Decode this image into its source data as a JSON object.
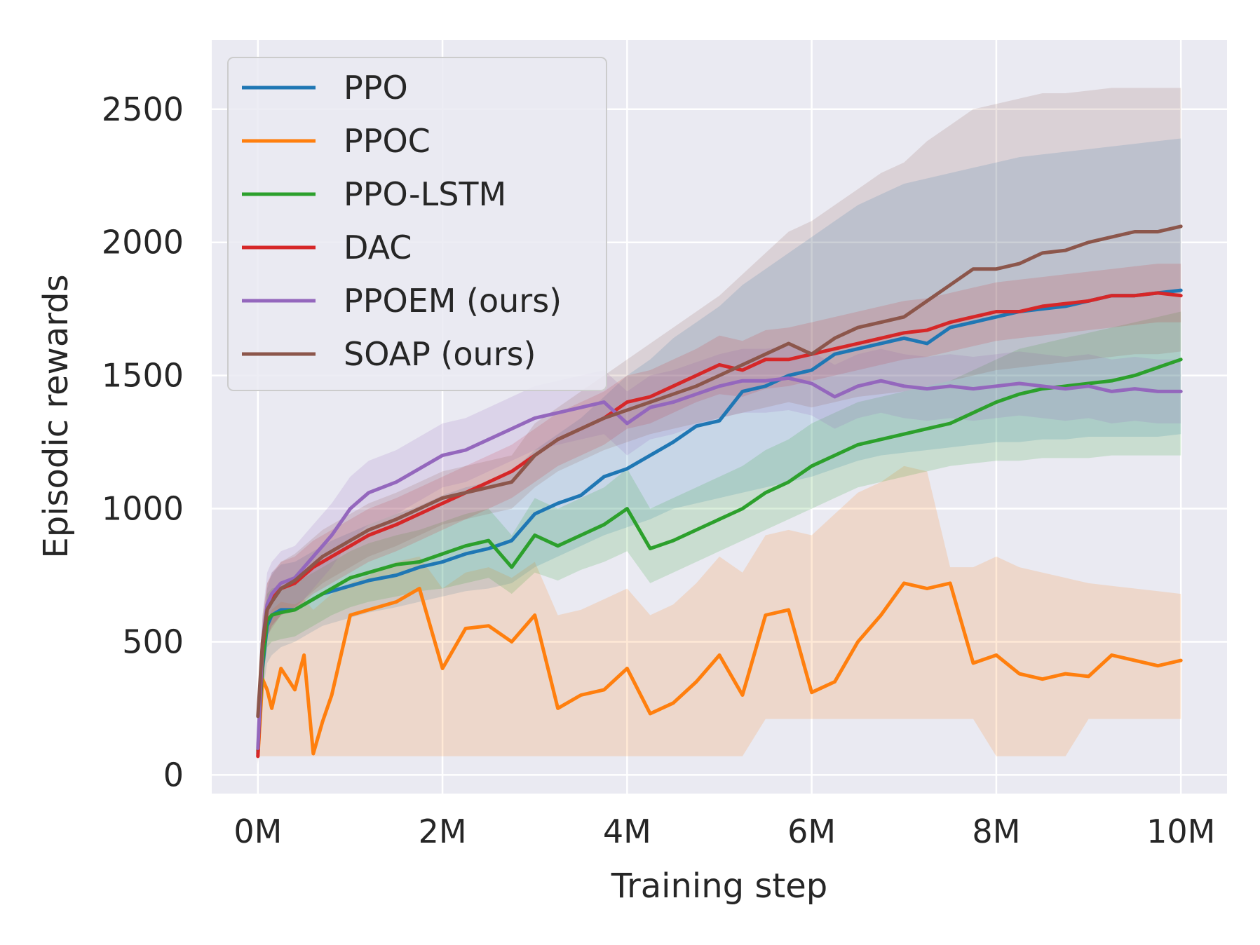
{
  "chart_data": {
    "type": "line",
    "title": "",
    "xlabel": "Training step",
    "ylabel": "Episodic rewards",
    "xlim": [
      -0.5,
      10.5
    ],
    "ylim": [
      -70,
      2760
    ],
    "x_ticks": [
      0,
      2,
      4,
      6,
      8,
      10
    ],
    "x_tick_labels": [
      "0M",
      "2M",
      "4M",
      "6M",
      "8M",
      "10M"
    ],
    "y_ticks": [
      0,
      500,
      1000,
      1500,
      2000,
      2500
    ],
    "y_tick_labels": [
      "0",
      "500",
      "1000",
      "1500",
      "2000",
      "2500"
    ],
    "grid": true,
    "legend_position": "top-left",
    "x": [
      0,
      0.05,
      0.1,
      0.15,
      0.25,
      0.4,
      0.5,
      0.6,
      0.7,
      0.8,
      1.0,
      1.2,
      1.5,
      1.75,
      2.0,
      2.25,
      2.5,
      2.75,
      3.0,
      3.25,
      3.5,
      3.75,
      4.0,
      4.25,
      4.5,
      4.75,
      5.0,
      5.25,
      5.5,
      5.75,
      6.0,
      6.25,
      6.5,
      6.75,
      7.0,
      7.25,
      7.5,
      7.75,
      8.0,
      8.25,
      8.5,
      8.75,
      9.0,
      9.25,
      9.5,
      9.75,
      10.0
    ],
    "series": [
      {
        "name": "PPO",
        "color": "#1f77b4",
        "values": [
          80,
          400,
          560,
          600,
          620,
          620,
          640,
          660,
          680,
          690,
          710,
          730,
          750,
          780,
          800,
          830,
          850,
          880,
          980,
          1020,
          1050,
          1120,
          1150,
          1200,
          1250,
          1310,
          1330,
          1440,
          1460,
          1500,
          1520,
          1580,
          1600,
          1620,
          1640,
          1620,
          1680,
          1700,
          1720,
          1740,
          1750,
          1760,
          1780,
          1800,
          1800,
          1810,
          1820
        ],
        "band_lower": [
          40,
          300,
          420,
          450,
          480,
          500,
          520,
          540,
          560,
          570,
          590,
          610,
          630,
          650,
          670,
          690,
          700,
          720,
          780,
          820,
          860,
          900,
          930,
          960,
          1000,
          1020,
          1040,
          1060,
          1080,
          1100,
          1120,
          1150,
          1180,
          1200,
          1210,
          1220,
          1230,
          1240,
          1250,
          1250,
          1260,
          1260,
          1270,
          1270,
          1270,
          1270,
          1280
        ],
        "band_upper": [
          150,
          520,
          700,
          760,
          790,
          800,
          820,
          840,
          860,
          880,
          910,
          940,
          980,
          1010,
          1050,
          1080,
          1100,
          1140,
          1220,
          1280,
          1340,
          1420,
          1500,
          1560,
          1640,
          1700,
          1760,
          1840,
          1900,
          1960,
          2020,
          2080,
          2140,
          2180,
          2220,
          2240,
          2260,
          2280,
          2300,
          2320,
          2330,
          2340,
          2350,
          2360,
          2370,
          2380,
          2390
        ]
      },
      {
        "name": "PPOC",
        "color": "#ff7f0e",
        "values": [
          70,
          360,
          320,
          250,
          400,
          320,
          450,
          80,
          200,
          300,
          600,
          620,
          650,
          700,
          400,
          550,
          560,
          500,
          600,
          250,
          300,
          320,
          400,
          230,
          270,
          350,
          450,
          300,
          600,
          620,
          310,
          350,
          500,
          600,
          720,
          700,
          720,
          420,
          450,
          380,
          360,
          380,
          370,
          450,
          430,
          410,
          430
        ],
        "band_lower": [
          70,
          70,
          70,
          70,
          70,
          70,
          70,
          70,
          70,
          70,
          70,
          70,
          70,
          70,
          70,
          70,
          70,
          70,
          70,
          70,
          70,
          70,
          70,
          70,
          70,
          70,
          70,
          70,
          210,
          210,
          210,
          210,
          210,
          210,
          210,
          210,
          210,
          210,
          70,
          70,
          70,
          70,
          210,
          210,
          210,
          210,
          210
        ],
        "band_upper": [
          150,
          380,
          560,
          620,
          650,
          640,
          660,
          620,
          650,
          680,
          720,
          750,
          800,
          820,
          700,
          760,
          780,
          740,
          800,
          600,
          620,
          660,
          700,
          600,
          640,
          720,
          820,
          760,
          900,
          920,
          900,
          980,
          1060,
          1100,
          1160,
          1140,
          780,
          780,
          820,
          780,
          760,
          740,
          720,
          710,
          700,
          690,
          680
        ]
      },
      {
        "name": "PPO-LSTM",
        "color": "#2ca02c",
        "values": [
          90,
          420,
          580,
          600,
          610,
          620,
          640,
          660,
          680,
          700,
          740,
          760,
          790,
          800,
          830,
          860,
          880,
          780,
          900,
          860,
          900,
          940,
          1000,
          850,
          880,
          920,
          960,
          1000,
          1060,
          1100,
          1160,
          1200,
          1240,
          1260,
          1280,
          1300,
          1320,
          1360,
          1400,
          1430,
          1450,
          1460,
          1470,
          1480,
          1500,
          1530,
          1560
        ],
        "band_lower": [
          50,
          340,
          480,
          500,
          510,
          520,
          540,
          560,
          580,
          600,
          630,
          650,
          670,
          690,
          700,
          720,
          740,
          680,
          760,
          730,
          770,
          800,
          840,
          720,
          760,
          800,
          840,
          880,
          920,
          960,
          1000,
          1040,
          1080,
          1100,
          1120,
          1140,
          1160,
          1170,
          1180,
          1180,
          1190,
          1190,
          1190,
          1200,
          1200,
          1200,
          1200
        ],
        "band_upper": [
          130,
          500,
          680,
          700,
          710,
          720,
          740,
          760,
          780,
          800,
          840,
          870,
          900,
          920,
          950,
          980,
          1000,
          900,
          1040,
          1000,
          1040,
          1080,
          1150,
          1000,
          1040,
          1080,
          1120,
          1160,
          1220,
          1260,
          1320,
          1360,
          1400,
          1420,
          1440,
          1460,
          1480,
          1520,
          1560,
          1600,
          1620,
          1640,
          1660,
          1680,
          1700,
          1720,
          1740
        ]
      },
      {
        "name": "DAC",
        "color": "#d62728",
        "values": [
          70,
          480,
          620,
          660,
          700,
          720,
          750,
          780,
          800,
          820,
          860,
          900,
          940,
          980,
          1020,
          1060,
          1100,
          1140,
          1200,
          1260,
          1300,
          1340,
          1400,
          1420,
          1460,
          1500,
          1540,
          1520,
          1560,
          1560,
          1580,
          1600,
          1620,
          1640,
          1660,
          1670,
          1700,
          1720,
          1740,
          1740,
          1760,
          1770,
          1780,
          1800,
          1800,
          1810,
          1800
        ],
        "band_lower": [
          40,
          380,
          520,
          560,
          600,
          620,
          650,
          680,
          700,
          720,
          760,
          800,
          840,
          880,
          920,
          960,
          1000,
          1040,
          1100,
          1160,
          1200,
          1240,
          1300,
          1320,
          1360,
          1400,
          1430,
          1420,
          1450,
          1460,
          1480,
          1500,
          1520,
          1540,
          1560,
          1570,
          1590,
          1610,
          1630,
          1640,
          1650,
          1660,
          1670,
          1680,
          1690,
          1700,
          1700
        ],
        "band_upper": [
          110,
          580,
          720,
          760,
          800,
          820,
          850,
          880,
          900,
          920,
          960,
          1000,
          1040,
          1080,
          1120,
          1160,
          1200,
          1240,
          1300,
          1360,
          1400,
          1440,
          1500,
          1520,
          1560,
          1600,
          1650,
          1630,
          1670,
          1680,
          1700,
          1720,
          1740,
          1760,
          1780,
          1790,
          1810,
          1830,
          1850,
          1860,
          1870,
          1880,
          1890,
          1900,
          1910,
          1920,
          1920
        ]
      },
      {
        "name": "PPOEM (ours)",
        "color": "#9467bd",
        "values": [
          100,
          500,
          640,
          680,
          720,
          740,
          780,
          820,
          860,
          900,
          1000,
          1060,
          1100,
          1150,
          1200,
          1220,
          1260,
          1300,
          1340,
          1360,
          1380,
          1400,
          1320,
          1380,
          1400,
          1430,
          1460,
          1480,
          1480,
          1490,
          1470,
          1420,
          1460,
          1480,
          1460,
          1450,
          1460,
          1450,
          1460,
          1470,
          1460,
          1450,
          1460,
          1440,
          1450,
          1440,
          1440
        ],
        "band_lower": [
          60,
          400,
          520,
          560,
          600,
          620,
          660,
          700,
          740,
          780,
          880,
          940,
          980,
          1030,
          1080,
          1100,
          1140,
          1180,
          1220,
          1240,
          1260,
          1280,
          1200,
          1260,
          1280,
          1310,
          1340,
          1360,
          1360,
          1370,
          1350,
          1300,
          1340,
          1360,
          1340,
          1330,
          1340,
          1330,
          1340,
          1350,
          1340,
          1330,
          1340,
          1320,
          1330,
          1320,
          1320
        ],
        "band_upper": [
          140,
          600,
          760,
          800,
          840,
          860,
          900,
          940,
          980,
          1020,
          1120,
          1180,
          1220,
          1270,
          1320,
          1340,
          1380,
          1420,
          1460,
          1480,
          1500,
          1520,
          1440,
          1500,
          1520,
          1550,
          1580,
          1600,
          1600,
          1610,
          1590,
          1540,
          1580,
          1600,
          1580,
          1570,
          1580,
          1570,
          1580,
          1590,
          1580,
          1570,
          1580,
          1560,
          1570,
          1560,
          1560
        ]
      },
      {
        "name": "SOAP (ours)",
        "color": "#8c564b",
        "values": [
          220,
          500,
          620,
          650,
          700,
          730,
          760,
          790,
          820,
          840,
          880,
          920,
          960,
          1000,
          1040,
          1060,
          1080,
          1100,
          1200,
          1260,
          1300,
          1340,
          1370,
          1400,
          1430,
          1460,
          1500,
          1540,
          1580,
          1620,
          1580,
          1640,
          1680,
          1700,
          1720,
          1780,
          1840,
          1900,
          1900,
          1920,
          1960,
          1970,
          2000,
          2020,
          2040,
          2040,
          2060
        ],
        "band_lower": [
          100,
          400,
          520,
          550,
          600,
          630,
          660,
          690,
          720,
          740,
          780,
          820,
          860,
          900,
          940,
          960,
          980,
          1000,
          1080,
          1140,
          1180,
          1220,
          1250,
          1280,
          1300,
          1320,
          1340,
          1360,
          1380,
          1400,
          1380,
          1400,
          1420,
          1430,
          1440,
          1460,
          1480,
          1500,
          1520,
          1530,
          1540,
          1550,
          1560,
          1570,
          1580,
          1580,
          1590
        ],
        "band_upper": [
          300,
          600,
          720,
          750,
          800,
          830,
          860,
          890,
          920,
          940,
          980,
          1020,
          1060,
          1100,
          1140,
          1160,
          1180,
          1200,
          1320,
          1380,
          1440,
          1500,
          1560,
          1620,
          1680,
          1740,
          1800,
          1880,
          1960,
          2040,
          2080,
          2140,
          2200,
          2260,
          2300,
          2380,
          2440,
          2500,
          2520,
          2540,
          2560,
          2560,
          2570,
          2580,
          2580,
          2580,
          2580
        ]
      }
    ]
  }
}
